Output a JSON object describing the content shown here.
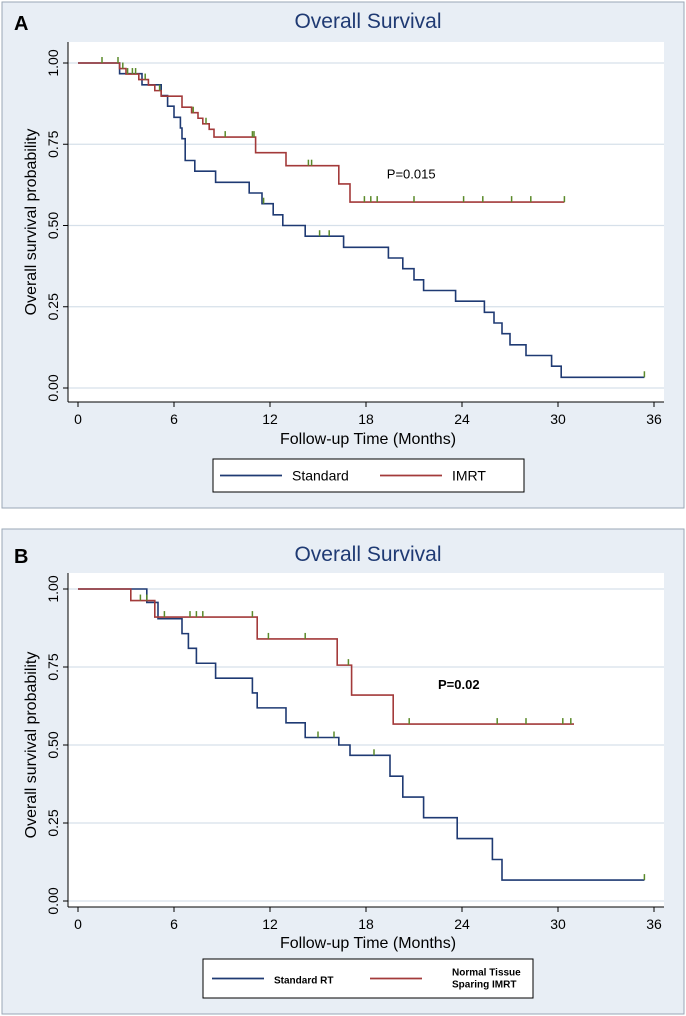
{
  "chart_data": [
    {
      "panel_label": "A",
      "type": "line",
      "title": "Overall Survival",
      "xlabel": "Follow-up Time (Months)",
      "ylabel": "Overall survival probability",
      "xlim": [
        0,
        36
      ],
      "ylim": [
        0,
        1
      ],
      "xticks": [
        "0",
        "6",
        "12",
        "18",
        "24",
        "30",
        "36"
      ],
      "yticks": [
        "0.00",
        "0.25",
        "0.50",
        "0.75",
        "1.00"
      ],
      "grid": true,
      "legend_position": "bottom",
      "annotation": {
        "text": "P=0.015",
        "x": 19.3,
        "y": 0.645,
        "bold": false
      },
      "colors": {
        "Standard": "#1f3a73",
        "IMRT": "#a33a3a",
        "censor": "#5b8a2a",
        "grid": "#d6e0ea",
        "panel_bg": "#e8eef5"
      },
      "series": [
        {
          "name": "Standard",
          "steps": [
            [
              0,
              1.0
            ],
            [
              2.6,
              0.967
            ],
            [
              4.0,
              0.933
            ],
            [
              5.2,
              0.9
            ],
            [
              5.6,
              0.867
            ],
            [
              6.0,
              0.833
            ],
            [
              6.4,
              0.8
            ],
            [
              6.5,
              0.767
            ],
            [
              6.7,
              0.7
            ],
            [
              7.3,
              0.667
            ],
            [
              8.6,
              0.633
            ],
            [
              10.7,
              0.6
            ],
            [
              11.5,
              0.567
            ],
            [
              12.2,
              0.533
            ],
            [
              12.8,
              0.5
            ],
            [
              14.2,
              0.467
            ],
            [
              16.6,
              0.433
            ],
            [
              19.4,
              0.4
            ],
            [
              20.3,
              0.367
            ],
            [
              21.0,
              0.333
            ],
            [
              21.6,
              0.3
            ],
            [
              23.6,
              0.267
            ],
            [
              25.4,
              0.233
            ],
            [
              26.0,
              0.2
            ],
            [
              26.5,
              0.167
            ],
            [
              27.0,
              0.133
            ],
            [
              28.0,
              0.1
            ],
            [
              29.6,
              0.067
            ],
            [
              30.2,
              0.033
            ],
            [
              35.4,
              0.033
            ]
          ],
          "censored": [
            [
              11.6,
              0.567
            ],
            [
              15.1,
              0.467
            ],
            [
              15.7,
              0.467
            ],
            [
              35.4,
              0.033
            ]
          ]
        },
        {
          "name": "IMRT",
          "steps": [
            [
              0,
              1.0
            ],
            [
              2.6,
              0.983
            ],
            [
              3.0,
              0.966
            ],
            [
              3.8,
              0.949
            ],
            [
              4.4,
              0.932
            ],
            [
              4.8,
              0.915
            ],
            [
              5.2,
              0.898
            ],
            [
              6.5,
              0.864
            ],
            [
              7.1,
              0.847
            ],
            [
              7.5,
              0.83
            ],
            [
              7.8,
              0.813
            ],
            [
              8.2,
              0.796
            ],
            [
              8.5,
              0.772
            ],
            [
              11.1,
              0.724
            ],
            [
              13.0,
              0.684
            ],
            [
              16.3,
              0.628
            ],
            [
              17.0,
              0.572
            ],
            [
              30.4,
              0.572
            ]
          ],
          "censored": [
            [
              1.5,
              1.0
            ],
            [
              2.5,
              1.0
            ],
            [
              2.8,
              0.983
            ],
            [
              3.1,
              0.966
            ],
            [
              3.4,
              0.966
            ],
            [
              3.6,
              0.966
            ],
            [
              4.2,
              0.949
            ],
            [
              5.1,
              0.915
            ],
            [
              7.2,
              0.847
            ],
            [
              8.0,
              0.813
            ],
            [
              9.2,
              0.772
            ],
            [
              10.9,
              0.772
            ],
            [
              11.0,
              0.772
            ],
            [
              14.4,
              0.684
            ],
            [
              14.6,
              0.684
            ],
            [
              17.9,
              0.572
            ],
            [
              18.3,
              0.572
            ],
            [
              18.7,
              0.572
            ],
            [
              21.0,
              0.572
            ],
            [
              24.1,
              0.572
            ],
            [
              25.3,
              0.572
            ],
            [
              27.1,
              0.572
            ],
            [
              28.3,
              0.572
            ],
            [
              30.4,
              0.572
            ]
          ]
        }
      ]
    },
    {
      "panel_label": "B",
      "type": "line",
      "title": "Overall Survival",
      "xlabel": "Follow-up Time (Months)",
      "ylabel": "Overall survival probability",
      "xlim": [
        0,
        36
      ],
      "ylim": [
        0,
        1
      ],
      "xticks": [
        "0",
        "6",
        "12",
        "18",
        "24",
        "30",
        "36"
      ],
      "yticks": [
        "0.00",
        "0.25",
        "0.50",
        "0.75",
        "1.00"
      ],
      "grid": true,
      "legend_position": "bottom",
      "annotation": {
        "text": "P=0.02",
        "x": 22.5,
        "y": 0.68,
        "bold": true
      },
      "colors": {
        "Standard RT": "#1f3a73",
        "Normal Tissue Sparing IMRT": "#a33a3a",
        "censor": "#5b8a2a",
        "grid": "#d6e0ea",
        "panel_bg": "#e8eef5"
      },
      "series": [
        {
          "name": "Standard RT",
          "legend_lines": [
            "Standard RT"
          ],
          "steps": [
            [
              0,
              1.0
            ],
            [
              4.3,
              0.957
            ],
            [
              5.0,
              0.905
            ],
            [
              6.5,
              0.857
            ],
            [
              6.9,
              0.81
            ],
            [
              7.4,
              0.762
            ],
            [
              8.6,
              0.714
            ],
            [
              10.9,
              0.667
            ],
            [
              11.2,
              0.619
            ],
            [
              13.0,
              0.571
            ],
            [
              14.2,
              0.524
            ],
            [
              16.3,
              0.5
            ],
            [
              17.0,
              0.467
            ],
            [
              19.5,
              0.4
            ],
            [
              20.3,
              0.333
            ],
            [
              21.6,
              0.267
            ],
            [
              23.7,
              0.2
            ],
            [
              25.9,
              0.133
            ],
            [
              26.5,
              0.067
            ],
            [
              35.4,
              0.067
            ]
          ],
          "censored": [
            [
              15.0,
              0.524
            ],
            [
              16.0,
              0.524
            ],
            [
              18.5,
              0.467
            ],
            [
              35.4,
              0.067
            ]
          ]
        },
        {
          "name": "Normal Tissue Sparing IMRT",
          "legend_lines": [
            "Normal Tissue",
            "Sparing IMRT"
          ],
          "steps": [
            [
              0,
              1.0
            ],
            [
              3.3,
              0.963
            ],
            [
              4.8,
              0.91
            ],
            [
              11.2,
              0.84
            ],
            [
              16.2,
              0.756
            ],
            [
              17.1,
              0.66
            ],
            [
              19.7,
              0.567
            ],
            [
              31.0,
              0.567
            ]
          ],
          "censored": [
            [
              3.9,
              0.963
            ],
            [
              4.3,
              0.963
            ],
            [
              5.4,
              0.91
            ],
            [
              7.0,
              0.91
            ],
            [
              7.4,
              0.91
            ],
            [
              7.8,
              0.91
            ],
            [
              10.9,
              0.91
            ],
            [
              11.9,
              0.84
            ],
            [
              14.2,
              0.84
            ],
            [
              16.9,
              0.756
            ],
            [
              20.7,
              0.567
            ],
            [
              26.2,
              0.567
            ],
            [
              28.0,
              0.567
            ],
            [
              30.3,
              0.567
            ],
            [
              30.8,
              0.567
            ]
          ]
        }
      ]
    }
  ]
}
